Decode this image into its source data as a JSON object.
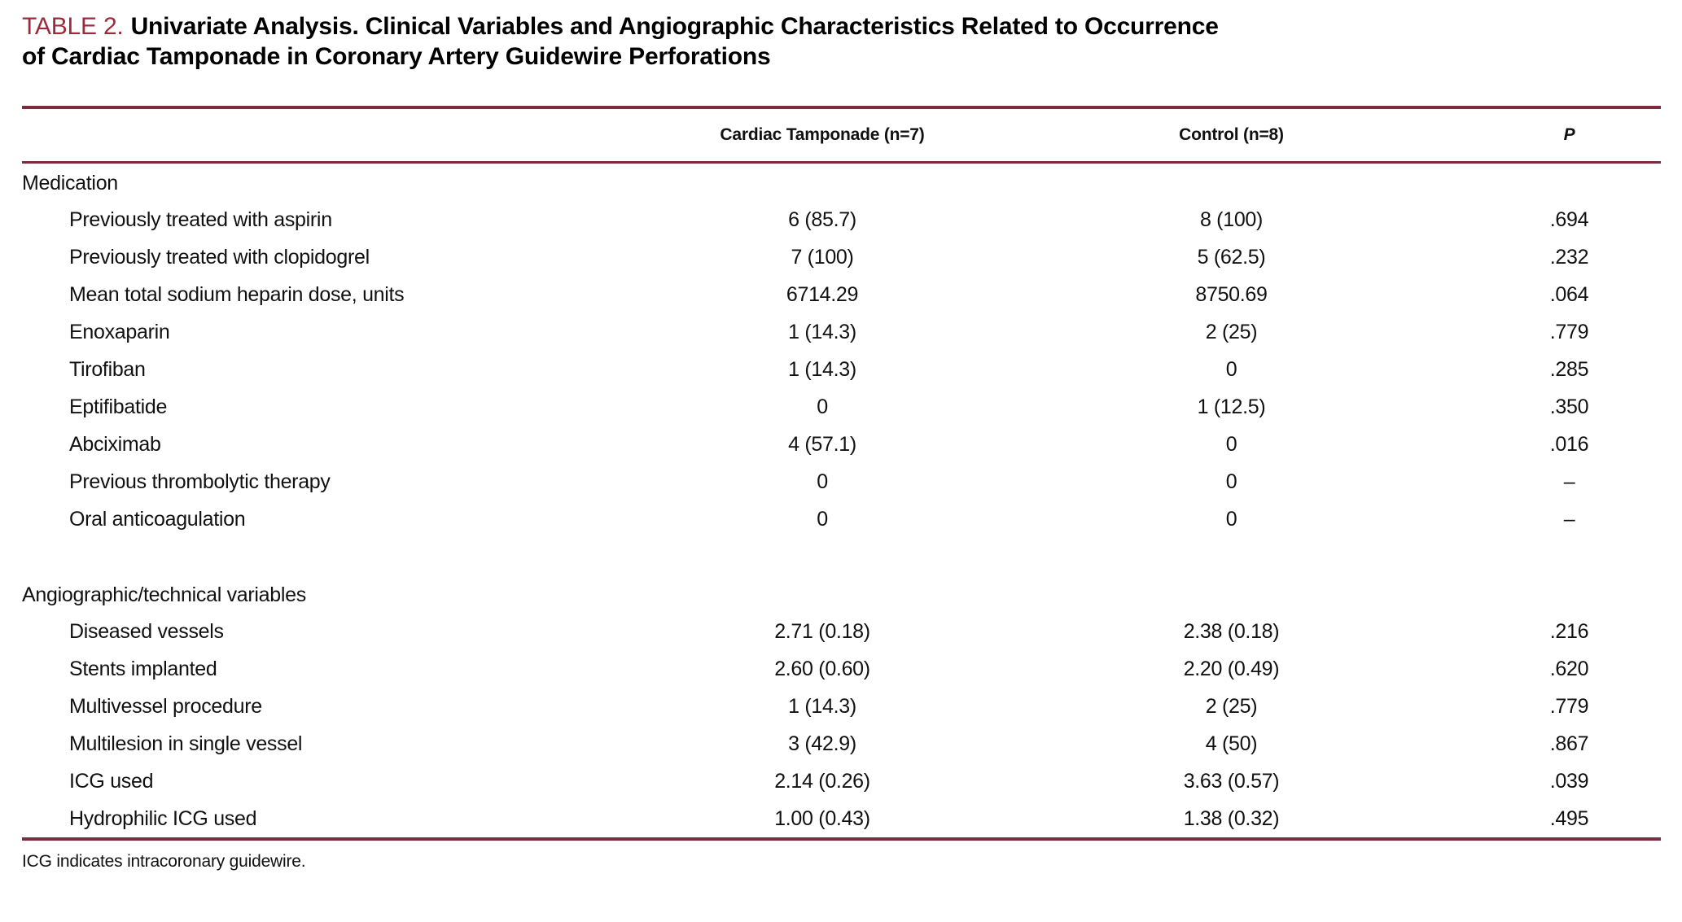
{
  "title": {
    "label": "TABLE 2.",
    "lines": [
      "Univariate Analysis. Clinical Variables and Angiographic Characteristics Related to Occurrence",
      "of Cardiac Tamponade in Coronary Artery Guidewire Perforations"
    ]
  },
  "columns": [
    "Cardiac Tamponade (n=7)",
    "Control (n=8)",
    "P"
  ],
  "sections": [
    {
      "header": "Medication",
      "rows": [
        {
          "label": "Previously treated with aspirin",
          "tamponade": "6 (85.7)",
          "control": "8 (100)",
          "p": ".694"
        },
        {
          "label": "Previously treated with clopidogrel",
          "tamponade": "7 (100)",
          "control": "5 (62.5)",
          "p": ".232"
        },
        {
          "label": "Mean total sodium heparin dose, units",
          "tamponade": "6714.29",
          "control": "8750.69",
          "p": ".064"
        },
        {
          "label": "Enoxaparin",
          "tamponade": "1 (14.3)",
          "control": "2 (25)",
          "p": ".779"
        },
        {
          "label": "Tirofiban",
          "tamponade": "1 (14.3)",
          "control": "0",
          "p": ".285"
        },
        {
          "label": "Eptifibatide",
          "tamponade": "0",
          "control": "1 (12.5)",
          "p": ".350"
        },
        {
          "label": "Abciximab",
          "tamponade": "4 (57.1)",
          "control": "0",
          "p": ".016"
        },
        {
          "label": "Previous thrombolytic therapy",
          "tamponade": "0",
          "control": "0",
          "p": "–"
        },
        {
          "label": "Oral anticoagulation",
          "tamponade": "0",
          "control": "0",
          "p": "–"
        }
      ]
    },
    {
      "header": "Angiographic/technical variables",
      "rows": [
        {
          "label": "Diseased vessels",
          "tamponade": "2.71 (0.18)",
          "control": "2.38 (0.18)",
          "p": ".216"
        },
        {
          "label": "Stents implanted",
          "tamponade": "2.60 (0.60)",
          "control": "2.20 (0.49)",
          "p": ".620"
        },
        {
          "label": "Multivessel procedure",
          "tamponade": "1 (14.3)",
          "control": "2 (25)",
          "p": ".779"
        },
        {
          "label": "Multilesion in single vessel",
          "tamponade": "3 (42.9)",
          "control": "4 (50)",
          "p": ".867"
        },
        {
          "label": "ICG used",
          "tamponade": "2.14 (0.26)",
          "control": "3.63 (0.57)",
          "p": ".039"
        },
        {
          "label": "Hydrophilic ICG used",
          "tamponade": "1.00 (0.43)",
          "control": "1.38 (0.32)",
          "p": ".495"
        }
      ]
    }
  ],
  "footnote": "ICG indicates intracoronary guidewire.",
  "colors": {
    "accent": "#9e2a3b",
    "rule": "#7d2c3e",
    "text": "#111111"
  }
}
